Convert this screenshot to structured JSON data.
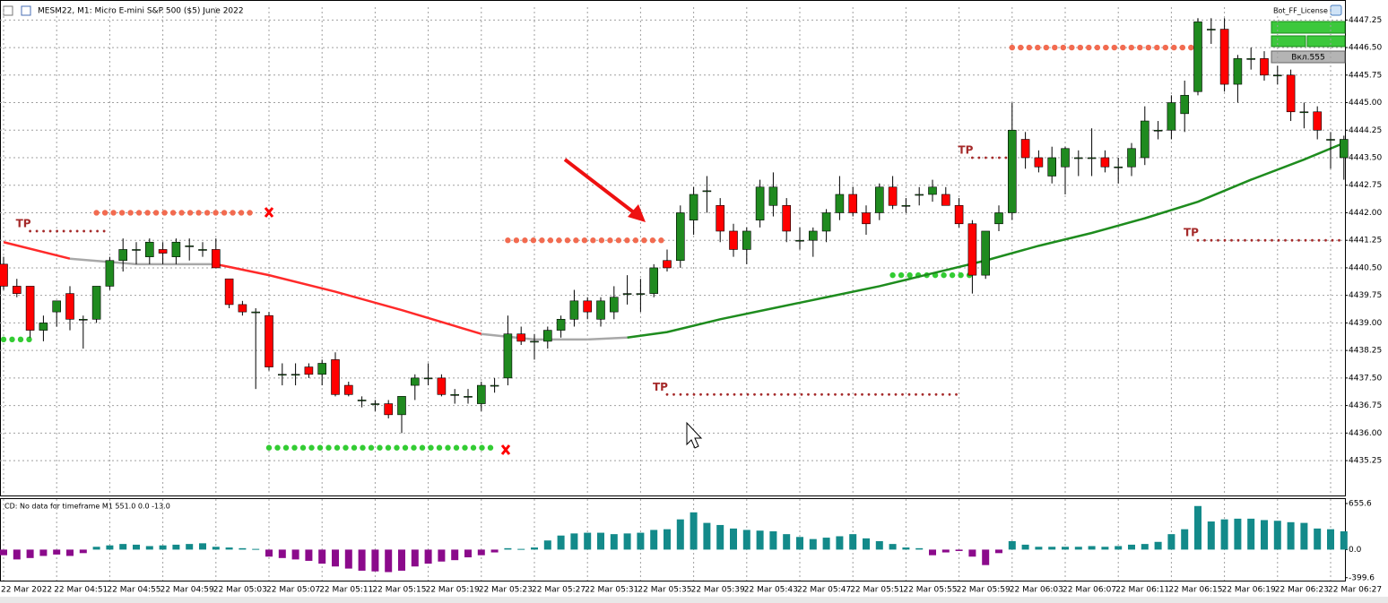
{
  "chart_data": [
    {
      "type": "candlestick",
      "title": "MESM22, M1:  Micro E-mini S&P 500 ($5) June 2022",
      "categories": [
        "22 Mar 2022",
        null,
        null,
        null,
        "22 Mar 04:51",
        null,
        null,
        null,
        "22 Mar 04:55",
        null,
        null,
        null,
        "22 Mar 04:59",
        null,
        null,
        null,
        "22 Mar 05:03",
        null,
        null,
        null,
        "22 Mar 05:07",
        null,
        null,
        null,
        "22 Mar 05:11",
        null,
        null,
        null,
        "22 Mar 05:15",
        null,
        null,
        null,
        "22 Mar 05:19",
        null,
        null,
        null,
        "22 Mar 05:23",
        null,
        null,
        null,
        "22 Mar 05:27",
        null,
        null,
        null,
        "22 Mar 05:31",
        null,
        null,
        null,
        "22 Mar 05:35",
        null,
        null,
        null,
        "22 Mar 05:39",
        null,
        null,
        null,
        "22 Mar 05:43",
        null,
        null,
        null,
        "22 Mar 05:47",
        null,
        null,
        null,
        "22 Mar 05:51",
        null,
        null,
        null,
        "22 Mar 05:55",
        null,
        null,
        null,
        "22 Mar 05:59",
        null,
        null,
        null,
        "22 Mar 06:03",
        null,
        null,
        null,
        "22 Mar 06:07",
        null,
        null,
        null,
        "22 Mar 06:11",
        null,
        null,
        null,
        "22 Mar 06:15",
        null,
        null,
        null,
        "22 Mar 06:19",
        null,
        null,
        null,
        "22 Mar 06:23",
        null,
        null,
        null,
        "22 Mar 06:27",
        null
      ],
      "open": [
        4440.6,
        4440.0,
        4440.0,
        4438.8,
        4439.3,
        4439.8,
        4439.1,
        4439.1,
        4440.0,
        4440.7,
        4441.0,
        4440.8,
        4441.0,
        4440.8,
        4441.1,
        4441.0,
        4441.0,
        4440.2,
        4439.5,
        4439.3,
        4439.2,
        4437.6,
        4437.6,
        4437.8,
        4437.6,
        4438.0,
        4437.3,
        4436.9,
        4436.8,
        4436.8,
        4436.5,
        4437.3,
        4437.5,
        4437.5,
        4437.05,
        4437.0,
        4436.8,
        4437.3,
        4437.5,
        4438.7,
        4438.5,
        4438.5,
        4438.8,
        4439.1,
        4439.6,
        4439.1,
        4439.3,
        4439.8,
        4439.8,
        4439.8,
        4440.7,
        4440.7,
        4441.8,
        4442.6,
        4442.2,
        4441.5,
        4441.0,
        4441.8,
        4442.2,
        4442.2,
        4441.25,
        4441.25,
        4441.5,
        4442.0,
        4442.5,
        4442.0,
        4442.0,
        4442.7,
        4442.2,
        4442.5,
        4442.5,
        4442.5,
        4442.2,
        4441.7,
        4440.3,
        4441.7,
        4442.0,
        4444.0,
        4443.5,
        4443.0,
        4443.25,
        4443.5,
        4443.5,
        4443.5,
        4443.25,
        4443.25,
        4443.5,
        4444.25,
        4444.25,
        4444.7,
        4445.3,
        4447.0,
        4447.0,
        4445.5,
        4446.2,
        4446.2,
        4445.75,
        4445.75,
        4444.75,
        4444.75,
        4444.0,
        4443.5
      ],
      "high": [
        4440.8,
        4440.2,
        4440.0,
        4439.2,
        4439.6,
        4440.0,
        4439.2,
        4440.0,
        4440.8,
        4441.3,
        4441.2,
        4441.3,
        4441.2,
        4441.3,
        4441.3,
        4441.2,
        4441.3,
        4440.2,
        4439.6,
        4439.4,
        4439.3,
        4437.9,
        4437.9,
        4437.9,
        4438.0,
        4438.2,
        4437.4,
        4437.0,
        4436.9,
        4436.9,
        4437.0,
        4437.6,
        4437.9,
        4437.6,
        4437.2,
        4437.2,
        4437.4,
        4437.5,
        4439.2,
        4438.9,
        4438.7,
        4438.9,
        4439.2,
        4439.9,
        4439.7,
        4439.7,
        4440.0,
        4440.3,
        4440.2,
        4440.6,
        4441.0,
        4442.2,
        4442.7,
        4443.0,
        4442.4,
        4441.7,
        4441.6,
        4442.9,
        4443.1,
        4442.4,
        4441.6,
        4441.6,
        4442.1,
        4443.0,
        4442.7,
        4442.2,
        4442.8,
        4443.0,
        4442.4,
        4442.7,
        4442.9,
        4442.7,
        4442.4,
        4441.8,
        4441.5,
        4442.2,
        4445.0,
        4444.2,
        4443.7,
        4443.8,
        4443.8,
        4443.7,
        4444.3,
        4443.7,
        4443.5,
        4443.9,
        4444.9,
        4444.5,
        4445.2,
        4445.6,
        4447.3,
        4447.3,
        4447.3,
        4446.3,
        4446.5,
        4446.4,
        4446.0,
        4445.9,
        4445.0,
        4444.9,
        4444.2,
        4444.1
      ],
      "low": [
        4439.9,
        4439.7,
        4438.6,
        4438.5,
        4438.9,
        4438.8,
        4438.3,
        4439.0,
        4439.9,
        4440.4,
        4440.6,
        4440.6,
        4440.6,
        4440.6,
        4440.7,
        4440.8,
        4440.5,
        4439.4,
        4439.2,
        4437.2,
        4437.7,
        4437.3,
        4437.3,
        4437.5,
        4437.3,
        4437.0,
        4437.0,
        4436.7,
        4436.6,
        4436.4,
        4436.0,
        4436.9,
        4437.3,
        4437.0,
        4436.8,
        4436.8,
        4436.6,
        4437.1,
        4437.3,
        4438.4,
        4438.0,
        4438.3,
        4438.6,
        4438.9,
        4439.1,
        4438.9,
        4439.1,
        4439.5,
        4439.3,
        4439.7,
        4440.4,
        4440.5,
        4441.4,
        4442.0,
        4441.2,
        4440.8,
        4440.6,
        4441.6,
        4441.9,
        4441.2,
        4441.0,
        4440.8,
        4441.2,
        4441.8,
        4441.9,
        4441.4,
        4441.8,
        4442.1,
        4442.0,
        4442.2,
        4442.3,
        4442.2,
        4441.6,
        4439.8,
        4440.2,
        4441.5,
        4441.8,
        4443.2,
        4443.1,
        4442.8,
        4442.5,
        4443.0,
        4443.0,
        4443.1,
        4442.8,
        4443.0,
        4443.3,
        4444.0,
        4444.0,
        4444.2,
        4445.2,
        4446.6,
        4445.3,
        4445.0,
        4445.9,
        4445.6,
        4445.5,
        4444.5,
        4444.3,
        4444.0,
        4443.2,
        4442.9
      ],
      "close": [
        4440.0,
        4439.8,
        4438.8,
        4439.0,
        4439.6,
        4439.1,
        4439.1,
        4440.0,
        4440.7,
        4441.0,
        4441.0,
        4441.2,
        4440.9,
        4441.2,
        4441.1,
        4441.0,
        4440.5,
        4439.5,
        4439.3,
        4439.3,
        4437.8,
        4437.6,
        4437.6,
        4437.6,
        4437.9,
        4437.05,
        4437.05,
        4436.9,
        4436.8,
        4436.5,
        4437.0,
        4437.5,
        4437.5,
        4437.05,
        4437.05,
        4437.0,
        4437.3,
        4437.3,
        4438.7,
        4438.5,
        4438.5,
        4438.8,
        4439.1,
        4439.6,
        4439.3,
        4439.6,
        4439.7,
        4439.8,
        4439.8,
        4440.5,
        4440.5,
        4442.0,
        4442.5,
        4442.6,
        4441.5,
        4441.0,
        4441.5,
        4442.7,
        4442.7,
        4441.5,
        4441.25,
        4441.5,
        4442.0,
        4442.5,
        4442.0,
        4441.7,
        4442.7,
        4442.2,
        4442.2,
        4442.5,
        4442.7,
        4442.2,
        4441.7,
        4440.3,
        4441.5,
        4442.0,
        4444.25,
        4443.5,
        4443.25,
        4443.5,
        4443.75,
        4443.5,
        4443.5,
        4443.25,
        4443.25,
        4443.75,
        4444.5,
        4444.25,
        4445.0,
        4445.2,
        4447.2,
        4447.0,
        4445.5,
        4446.2,
        4446.2,
        4445.75,
        4445.75,
        4444.75,
        4444.75,
        4444.25,
        4444.0,
        4444.0
      ],
      "up_color": "#1f8a1f",
      "down_color": "#ff0000",
      "ylim": [
        4434.3,
        4447.6
      ],
      "yticks": [
        4447.25,
        {
          "value": 4446.5,
          "label": "4446.50"
        },
        4445.75,
        {
          "value": 4445,
          "label": "4445.00"
        },
        4444.25,
        {
          "value": 4443.5,
          "label": "4443.50"
        },
        4442.75,
        {
          "value": 4442,
          "label": "4442.00"
        },
        4441.25,
        {
          "value": 4440.5,
          "label": "4440.50"
        },
        4439.75,
        {
          "value": 4439,
          "label": "4439.00"
        },
        4438.25,
        {
          "value": 4437.5,
          "label": "4437.50"
        },
        4436.75,
        {
          "value": 4436,
          "label": "4436.00"
        },
        4435.25
      ],
      "grid": true,
      "lines": [
        {
          "color": "#ff2a2a",
          "x": [
            0,
            5
          ],
          "values": [
            4441.2,
            4440.75
          ]
        },
        {
          "color": "#a8a8a8",
          "x": [
            5,
            10,
            16
          ],
          "values": [
            4440.75,
            4440.6,
            4440.6
          ]
        },
        {
          "color": "#ff2a2a",
          "x": [
            16,
            20,
            25,
            30,
            36
          ],
          "values": [
            4440.6,
            4440.3,
            4439.85,
            4439.35,
            4438.7
          ]
        },
        {
          "color": "#a8a8a8",
          "x": [
            36,
            40,
            44,
            47
          ],
          "values": [
            4438.7,
            4438.55,
            4438.55,
            4438.6
          ]
        },
        {
          "color": "#1e8c1e",
          "x": [
            47,
            50,
            54,
            58,
            62,
            66,
            70,
            74,
            78,
            82,
            86,
            90,
            94,
            98,
            101
          ],
          "values": [
            4438.6,
            4438.75,
            4439.1,
            4439.4,
            4439.7,
            4440.0,
            4440.35,
            4440.7,
            4441.1,
            4441.45,
            4441.85,
            4442.3,
            4442.9,
            4443.45,
            4443.9
          ]
        }
      ],
      "levels": [
        {
          "price": 4442.0,
          "start": 7,
          "end": 19,
          "color": "#f26b50",
          "style": "dots"
        },
        {
          "price": 4441.5,
          "start": 2,
          "end": 8,
          "color": "#a52a2a",
          "style": "small",
          "label": "TP"
        },
        {
          "price": 4435.6,
          "start": 20,
          "end": 37,
          "color": "#33cc33",
          "style": "dots"
        },
        {
          "price": 4441.25,
          "start": 38,
          "end": 50,
          "color": "#f26b50",
          "style": "dots"
        },
        {
          "price": 4437.05,
          "start": 50,
          "end": 72,
          "color": "#a52a2a",
          "style": "small",
          "label": "TP"
        },
        {
          "price": 4446.5,
          "start": 76,
          "end": 90,
          "color": "#f26b50",
          "style": "dots"
        },
        {
          "price": 4443.5,
          "start": 73,
          "end": 76,
          "color": "#a52a2a",
          "style": "small",
          "label": "TP"
        },
        {
          "price": 4440.3,
          "start": 67,
          "end": 73,
          "color": "#33cc33",
          "style": "dots"
        },
        {
          "price": 4441.25,
          "start": 90,
          "end": 101,
          "color": "#a52a2a",
          "style": "small",
          "label": "TP"
        },
        {
          "price": 4438.55,
          "start": 0,
          "end": 2,
          "color": "#33cc33",
          "style": "dots"
        }
      ]
    },
    {
      "type": "bar",
      "title": "CD: No data for timeframe M1 551.0 0.0 -13.0",
      "values": [
        -80,
        -140,
        -120,
        -90,
        -70,
        -90,
        -50,
        40,
        60,
        80,
        70,
        50,
        60,
        70,
        80,
        90,
        40,
        30,
        20,
        10,
        -100,
        -120,
        -140,
        -160,
        -200,
        -240,
        -270,
        -300,
        -310,
        -320,
        -300,
        -240,
        -200,
        -170,
        -150,
        -110,
        -80,
        -40,
        20,
        10,
        30,
        130,
        200,
        230,
        240,
        240,
        220,
        230,
        240,
        280,
        290,
        430,
        530,
        380,
        350,
        300,
        280,
        270,
        260,
        220,
        180,
        150,
        170,
        190,
        220,
        160,
        120,
        80,
        30,
        20,
        -80,
        -40,
        -20,
        -100,
        -220,
        -50,
        120,
        70,
        40,
        40,
        40,
        40,
        50,
        40,
        50,
        70,
        80,
        110,
        220,
        290,
        620,
        400,
        430,
        440,
        440,
        420,
        410,
        390,
        380,
        300,
        290,
        260
      ],
      "pos_color": "#138a8a",
      "neg_color": "#8b0a8b",
      "ylim": [
        -441,
        719
      ],
      "yticks": [
        655.6,
        {
          "value": 0,
          "label": "0.0"
        },
        -399.6
      ]
    }
  ],
  "panel": {
    "name": "Bot_FF_License",
    "button": "Вкл.555"
  }
}
